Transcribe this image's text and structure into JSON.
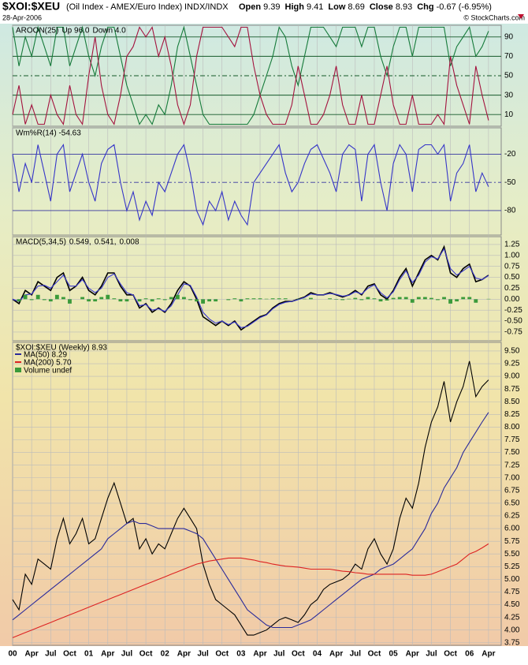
{
  "header": {
    "symbol": "$XOI:$XEU",
    "description": "(Oil Index - AMEX/Euro Index)",
    "exchange": "INDX/INDX",
    "date": "28-Apr-2006",
    "copyright": "© StockCharts.com",
    "quote": [
      {
        "label": "Open",
        "value": 9.39
      },
      {
        "label": "High",
        "value": 9.41
      },
      {
        "label": "Low",
        "value": 8.69
      },
      {
        "label": "Close",
        "value": 8.93
      },
      {
        "label": "Chg",
        "value": "-0.67 (-6.95%)"
      }
    ]
  },
  "chart_data": [
    {
      "type": "line",
      "title": "AROON(25)",
      "ylim": [
        -2,
        102
      ],
      "yticks": [
        10,
        30,
        50,
        70,
        90
      ],
      "grid": true,
      "series": [
        {
          "name": "Up 96.0",
          "color": "#157a3a",
          "values": [
            100,
            60,
            90,
            70,
            100,
            80,
            60,
            100,
            100,
            60,
            80,
            100,
            70,
            50,
            80,
            100,
            100,
            70,
            40,
            20,
            0,
            10,
            0,
            20,
            10,
            40,
            80,
            100,
            70,
            40,
            10,
            0,
            0,
            0,
            0,
            0,
            0,
            0,
            10,
            30,
            50,
            70,
            100,
            90,
            60,
            40,
            70,
            100,
            100,
            100,
            90,
            80,
            100,
            100,
            100,
            80,
            100,
            100,
            70,
            50,
            80,
            100,
            100,
            70,
            100,
            100,
            100,
            100,
            100,
            60,
            80,
            90,
            100,
            70,
            80,
            96
          ]
        },
        {
          "name": "Down 4.0",
          "color": "#a3123e",
          "values": [
            10,
            40,
            0,
            20,
            0,
            0,
            30,
            10,
            0,
            40,
            10,
            0,
            50,
            90,
            40,
            10,
            0,
            30,
            70,
            80,
            100,
            90,
            100,
            70,
            90,
            60,
            20,
            0,
            20,
            70,
            100,
            100,
            100,
            100,
            90,
            80,
            100,
            100,
            60,
            30,
            10,
            0,
            0,
            0,
            20,
            60,
            30,
            0,
            0,
            10,
            30,
            60,
            20,
            0,
            0,
            30,
            0,
            0,
            30,
            60,
            20,
            0,
            0,
            30,
            0,
            0,
            0,
            10,
            0,
            70,
            40,
            20,
            0,
            60,
            30,
            4
          ]
        }
      ]
    },
    {
      "type": "line",
      "title": "Wm%R(14) -54.63",
      "ylim": [
        -106,
        8
      ],
      "yticks": [
        -20,
        -50,
        -80
      ],
      "grid": true,
      "series": [
        {
          "color": "#3535c8",
          "values": [
            -20,
            -60,
            -30,
            -50,
            -10,
            -40,
            -70,
            -20,
            -10,
            -60,
            -40,
            -20,
            -50,
            -70,
            -30,
            -15,
            -10,
            -50,
            -80,
            -60,
            -90,
            -70,
            -85,
            -50,
            -60,
            -40,
            -20,
            -10,
            -40,
            -80,
            -95,
            -70,
            -80,
            -60,
            -90,
            -70,
            -85,
            -95,
            -50,
            -40,
            -30,
            -20,
            -10,
            -40,
            -60,
            -50,
            -30,
            -15,
            -10,
            -25,
            -40,
            -60,
            -20,
            -10,
            -15,
            -70,
            -20,
            -10,
            -50,
            -80,
            -30,
            -10,
            -20,
            -60,
            -15,
            -10,
            -10,
            -20,
            -10,
            -70,
            -40,
            -30,
            -10,
            -60,
            -40,
            -54.63
          ]
        }
      ]
    },
    {
      "type": "macd",
      "title": "MACD(5,34,5)",
      "ylim": [
        -0.95,
        1.43
      ],
      "yticks": [
        1.25,
        {
          "value": 1,
          "label": "1.00"
        },
        0.75,
        {
          "value": 0.5,
          "label": "0.50"
        },
        0.25,
        {
          "value": 0,
          "label": "0.00"
        },
        -0.25,
        {
          "value": -0.5,
          "label": "-0.50"
        },
        -0.75
      ],
      "grid": true,
      "series": [
        {
          "name": "0.549,",
          "color": "#000000",
          "values": [
            0.0,
            -0.1,
            0.2,
            0.1,
            0.4,
            0.3,
            0.2,
            0.5,
            0.6,
            0.2,
            0.3,
            0.5,
            0.2,
            0.1,
            0.3,
            0.6,
            0.6,
            0.3,
            0.1,
            0.1,
            -0.2,
            -0.1,
            -0.3,
            -0.2,
            -0.3,
            -0.1,
            0.2,
            0.4,
            0.3,
            0.0,
            -0.4,
            -0.5,
            -0.6,
            -0.5,
            -0.6,
            -0.5,
            -0.7,
            -0.6,
            -0.5,
            -0.4,
            -0.35,
            -0.2,
            -0.1,
            -0.05,
            -0.05,
            0.0,
            0.05,
            0.15,
            0.1,
            0.1,
            0.15,
            0.1,
            0.05,
            0.1,
            0.2,
            0.1,
            0.3,
            0.35,
            0.1,
            0.0,
            0.2,
            0.5,
            0.7,
            0.3,
            0.6,
            0.9,
            1.0,
            0.9,
            1.2,
            0.6,
            0.5,
            0.7,
            0.8,
            0.4,
            0.45,
            0.549
          ]
        },
        {
          "name": "0.541,",
          "color": "#3a3ad0",
          "values": [
            0.0,
            -0.05,
            0.1,
            0.12,
            0.3,
            0.32,
            0.25,
            0.4,
            0.55,
            0.3,
            0.3,
            0.45,
            0.25,
            0.15,
            0.25,
            0.5,
            0.58,
            0.35,
            0.15,
            0.1,
            -0.15,
            -0.12,
            -0.25,
            -0.22,
            -0.28,
            -0.15,
            0.1,
            0.35,
            0.32,
            0.05,
            -0.3,
            -0.45,
            -0.55,
            -0.5,
            -0.58,
            -0.52,
            -0.65,
            -0.62,
            -0.52,
            -0.42,
            -0.36,
            -0.22,
            -0.12,
            -0.07,
            -0.05,
            -0.01,
            0.04,
            0.12,
            0.1,
            0.1,
            0.13,
            0.11,
            0.07,
            0.09,
            0.17,
            0.12,
            0.25,
            0.33,
            0.15,
            0.03,
            0.17,
            0.45,
            0.65,
            0.38,
            0.55,
            0.85,
            0.97,
            0.92,
            1.15,
            0.7,
            0.55,
            0.65,
            0.75,
            0.48,
            0.45,
            0.541
          ]
        },
        {
          "name": "0.008",
          "color": "#3a9a3a",
          "bars": true,
          "values": [
            0,
            -0.05,
            0.1,
            -0.02,
            0.1,
            -0.02,
            -0.05,
            0.1,
            0.05,
            -0.1,
            0,
            0.05,
            -0.05,
            -0.05,
            0.05,
            0.1,
            0.02,
            -0.05,
            -0.05,
            0,
            -0.05,
            0.02,
            -0.05,
            0.02,
            -0.02,
            0.05,
            0.1,
            0.05,
            -0.02,
            -0.05,
            -0.1,
            -0.05,
            -0.05,
            0,
            -0.02,
            0.02,
            -0.05,
            0.02,
            0.02,
            0.02,
            0.01,
            0.02,
            0.02,
            0.02,
            0,
            0.01,
            0.01,
            0.03,
            0,
            0,
            0.02,
            -0.01,
            -0.02,
            0.01,
            0.03,
            -0.02,
            0.05,
            0.02,
            -0.05,
            -0.03,
            0.03,
            0.05,
            0.05,
            -0.08,
            0.05,
            0.05,
            0.03,
            -0.02,
            0.05,
            -0.1,
            -0.05,
            0.05,
            0.05,
            -0.08,
            0,
            0.008
          ]
        }
      ]
    },
    {
      "type": "line",
      "title": "$XOI:$XEU (Weekly) 8.93",
      "legend_extra": "Volume undef",
      "ylim": [
        3.7,
        9.67
      ],
      "yticks": [
        {
          "value": 9.5,
          "label": "9.50"
        },
        9.25,
        {
          "value": 9,
          "label": "9.00"
        },
        8.75,
        {
          "value": 8.5,
          "label": "8.50"
        },
        8.25,
        {
          "value": 8,
          "label": "8.00"
        },
        7.75,
        {
          "value": 7.5,
          "label": "7.50"
        },
        7.25,
        {
          "value": 7,
          "label": "7.00"
        },
        6.75,
        {
          "value": 6.5,
          "label": "6.50"
        },
        6.25,
        {
          "value": 6,
          "label": "6.00"
        },
        5.75,
        {
          "value": 5.5,
          "label": "5.50"
        },
        5.25,
        {
          "value": 5,
          "label": "5.00"
        },
        4.75,
        {
          "value": 4.5,
          "label": "4.50"
        },
        4.25,
        {
          "value": 4,
          "label": "4.00"
        },
        3.75
      ],
      "grid": true,
      "xlim": [
        "2000-01",
        "2006-06"
      ],
      "x": [
        "2000-01",
        "2000-02",
        "2000-03",
        "2000-04",
        "2000-05",
        "2000-06",
        "2000-07",
        "2000-08",
        "2000-09",
        "2000-10",
        "2000-11",
        "2000-12",
        "2001-01",
        "2001-02",
        "2001-03",
        "2001-04",
        "2001-05",
        "2001-06",
        "2001-07",
        "2001-08",
        "2001-09",
        "2001-10",
        "2001-11",
        "2001-12",
        "2002-01",
        "2002-02",
        "2002-03",
        "2002-04",
        "2002-05",
        "2002-06",
        "2002-07",
        "2002-08",
        "2002-09",
        "2002-10",
        "2002-11",
        "2002-12",
        "2003-01",
        "2003-02",
        "2003-03",
        "2003-04",
        "2003-05",
        "2003-06",
        "2003-07",
        "2003-08",
        "2003-09",
        "2003-10",
        "2003-11",
        "2003-12",
        "2004-01",
        "2004-02",
        "2004-03",
        "2004-04",
        "2004-05",
        "2004-06",
        "2004-07",
        "2004-08",
        "2004-09",
        "2004-10",
        "2004-11",
        "2004-12",
        "2005-01",
        "2005-02",
        "2005-03",
        "2005-04",
        "2005-05",
        "2005-06",
        "2005-07",
        "2005-08",
        "2005-09",
        "2005-10",
        "2005-11",
        "2005-12",
        "2006-01",
        "2006-02",
        "2006-03",
        "2006-04"
      ],
      "xticks": [
        {
          "value": "2000-01",
          "label": "00"
        },
        {
          "value": "2000-04",
          "label": "Apr"
        },
        {
          "value": "2000-07",
          "label": "Jul"
        },
        {
          "value": "2000-10",
          "label": "Oct"
        },
        {
          "value": "2001-01",
          "label": "01"
        },
        {
          "value": "2001-04",
          "label": "Apr"
        },
        {
          "value": "2001-07",
          "label": "Jul"
        },
        {
          "value": "2001-10",
          "label": "Oct"
        },
        {
          "value": "2002-01",
          "label": "02"
        },
        {
          "value": "2002-04",
          "label": "Apr"
        },
        {
          "value": "2002-07",
          "label": "Jul"
        },
        {
          "value": "2002-10",
          "label": "Oct"
        },
        {
          "value": "2003-01",
          "label": "03"
        },
        {
          "value": "2003-04",
          "label": "Apr"
        },
        {
          "value": "2003-07",
          "label": "Jul"
        },
        {
          "value": "2003-10",
          "label": "Oct"
        },
        {
          "value": "2004-01",
          "label": "04"
        },
        {
          "value": "2004-04",
          "label": "Apr"
        },
        {
          "value": "2004-07",
          "label": "Jul"
        },
        {
          "value": "2004-10",
          "label": "Oct"
        },
        {
          "value": "2005-01",
          "label": "05"
        },
        {
          "value": "2005-04",
          "label": "Apr"
        },
        {
          "value": "2005-07",
          "label": "Jul"
        },
        {
          "value": "2005-10",
          "label": "Oct"
        },
        {
          "value": "2006-01",
          "label": "06"
        },
        {
          "value": "2006-04",
          "label": "Apr"
        }
      ],
      "series": [
        {
          "name": "$XOI:$XEU",
          "color": "#000000",
          "values": [
            4.6,
            4.4,
            5.1,
            4.9,
            5.4,
            5.3,
            5.2,
            5.8,
            6.2,
            5.7,
            5.9,
            6.2,
            5.7,
            5.8,
            6.2,
            6.6,
            6.9,
            6.5,
            6.1,
            6.2,
            5.6,
            5.8,
            5.5,
            5.7,
            5.6,
            5.9,
            6.2,
            6.4,
            6.2,
            6.0,
            5.3,
            4.9,
            4.6,
            4.5,
            4.4,
            4.3,
            4.1,
            3.9,
            3.9,
            3.95,
            4.0,
            4.1,
            4.2,
            4.25,
            4.2,
            4.15,
            4.3,
            4.5,
            4.6,
            4.8,
            4.9,
            4.95,
            5.0,
            5.1,
            5.3,
            5.2,
            5.6,
            5.8,
            5.5,
            5.3,
            5.6,
            6.2,
            6.6,
            6.4,
            6.9,
            7.6,
            8.1,
            8.4,
            8.9,
            8.1,
            8.5,
            8.8,
            9.3,
            8.6,
            8.8,
            8.93
          ]
        },
        {
          "name": "MA(50) 8.29",
          "color": "#2a2a9a",
          "values": [
            4.2,
            4.3,
            4.4,
            4.5,
            4.6,
            4.7,
            4.8,
            4.9,
            5.0,
            5.1,
            5.2,
            5.3,
            5.4,
            5.5,
            5.6,
            5.8,
            5.9,
            6.0,
            6.1,
            6.15,
            6.1,
            6.1,
            6.05,
            6.0,
            6.0,
            6.0,
            6.0,
            6.0,
            5.95,
            5.9,
            5.8,
            5.6,
            5.4,
            5.2,
            5.0,
            4.8,
            4.6,
            4.4,
            4.3,
            4.2,
            4.1,
            4.05,
            4.05,
            4.05,
            4.05,
            4.1,
            4.15,
            4.2,
            4.3,
            4.4,
            4.5,
            4.6,
            4.7,
            4.8,
            4.9,
            5.0,
            5.05,
            5.1,
            5.2,
            5.25,
            5.3,
            5.4,
            5.5,
            5.6,
            5.8,
            6.0,
            6.3,
            6.5,
            6.8,
            7.0,
            7.2,
            7.5,
            7.7,
            7.9,
            8.1,
            8.29
          ]
        },
        {
          "name": "MA(200) 5.70",
          "color": "#dd2222",
          "values": [
            3.85,
            3.9,
            3.95,
            4.0,
            4.05,
            4.1,
            4.15,
            4.2,
            4.25,
            4.3,
            4.35,
            4.4,
            4.45,
            4.5,
            4.55,
            4.6,
            4.65,
            4.7,
            4.75,
            4.8,
            4.85,
            4.9,
            4.95,
            5.0,
            5.05,
            5.1,
            5.15,
            5.2,
            5.25,
            5.3,
            5.33,
            5.36,
            5.38,
            5.4,
            5.42,
            5.42,
            5.42,
            5.4,
            5.38,
            5.35,
            5.33,
            5.3,
            5.28,
            5.26,
            5.25,
            5.24,
            5.22,
            5.2,
            5.2,
            5.2,
            5.2,
            5.18,
            5.16,
            5.15,
            5.13,
            5.12,
            5.1,
            5.1,
            5.1,
            5.1,
            5.1,
            5.1,
            5.1,
            5.08,
            5.08,
            5.08,
            5.1,
            5.15,
            5.2,
            5.25,
            5.3,
            5.4,
            5.5,
            5.55,
            5.62,
            5.7
          ]
        }
      ]
    }
  ]
}
